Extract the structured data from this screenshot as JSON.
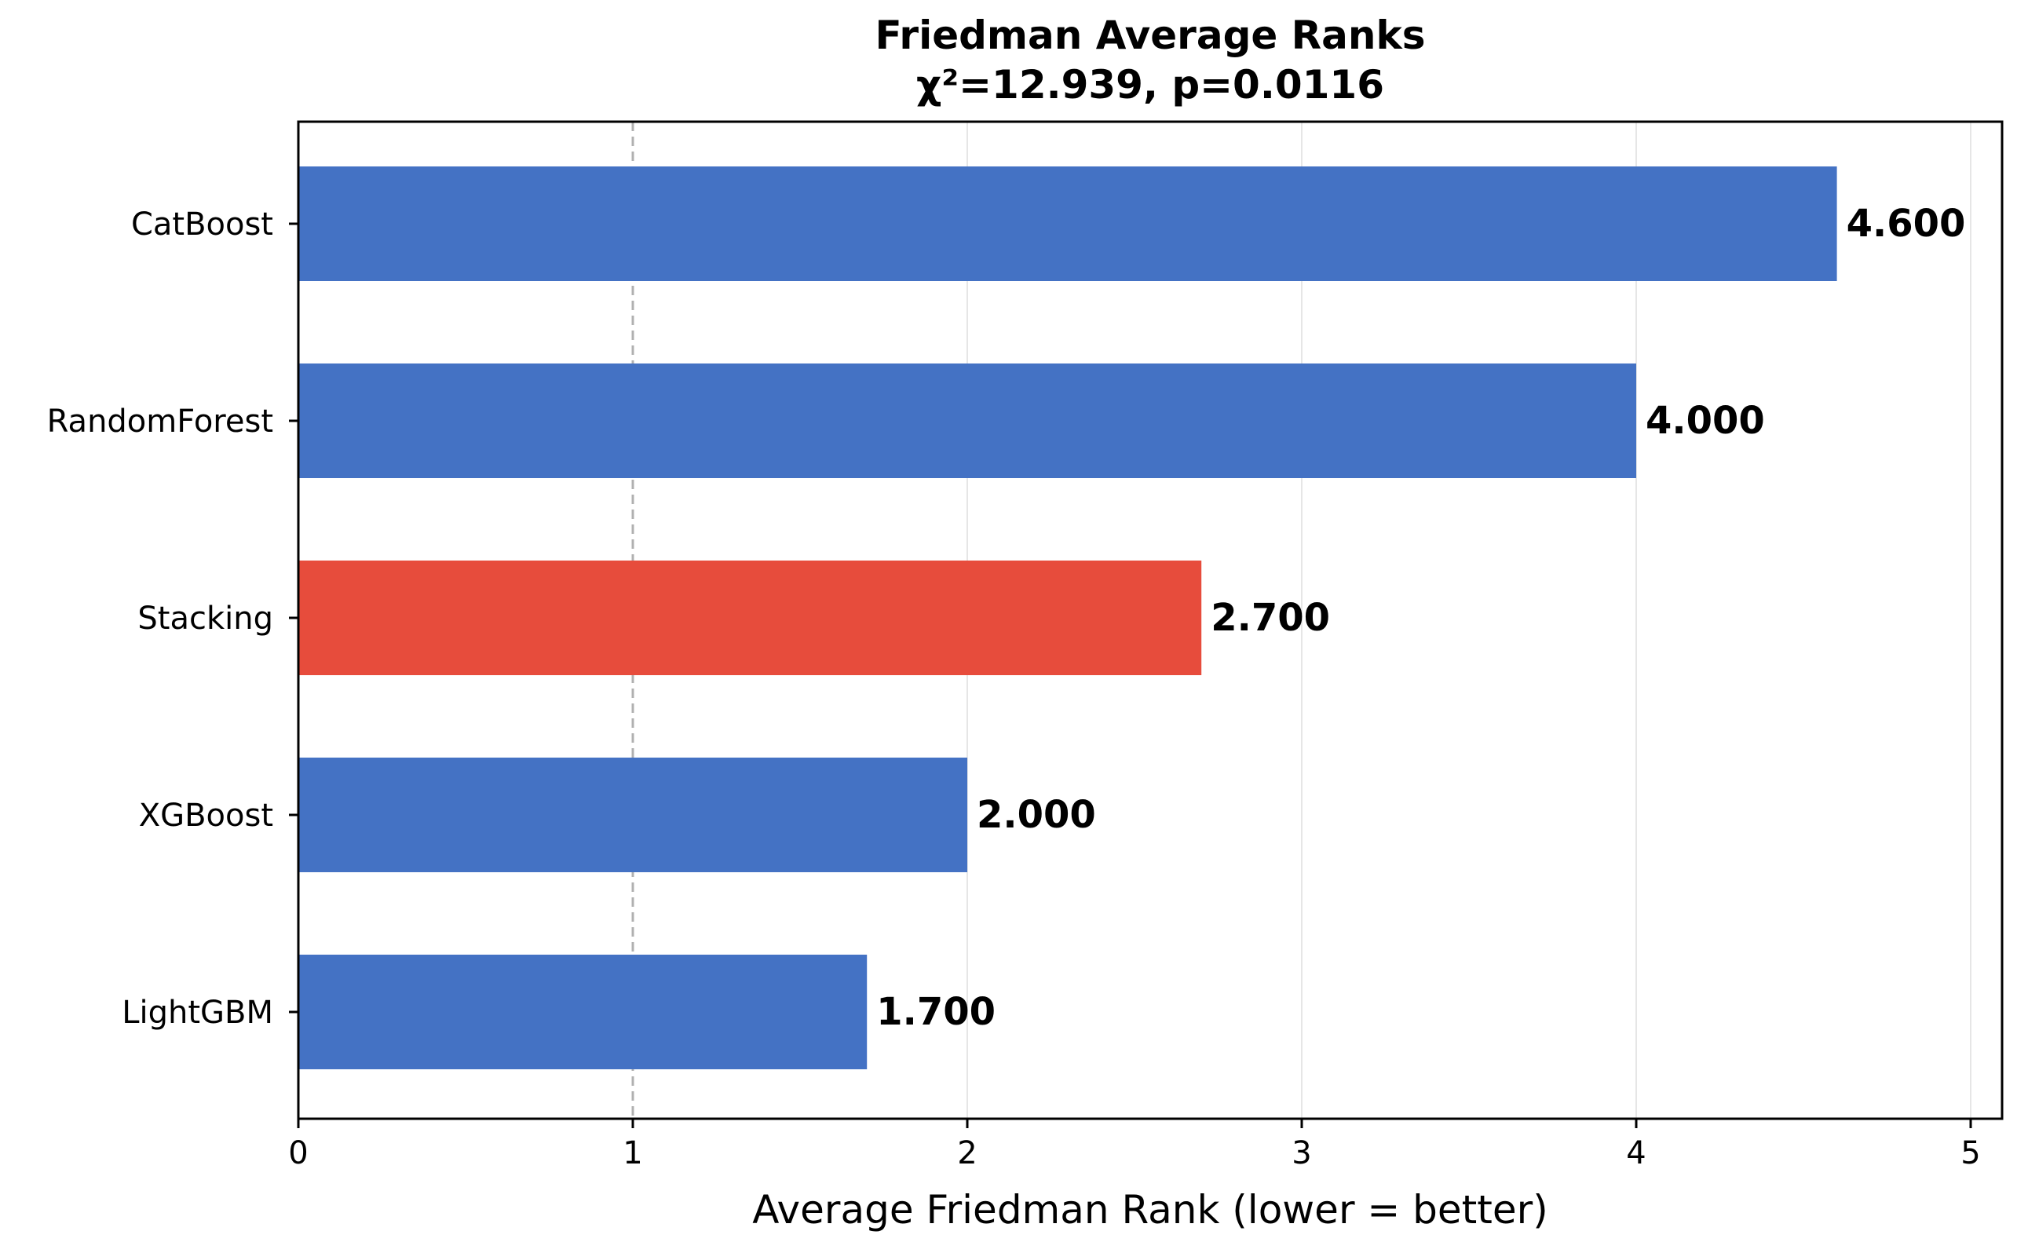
{
  "chart_data": {
    "type": "bar",
    "orientation": "horizontal",
    "title": "Friedman Average Ranks",
    "subtitle": "χ²=12.939, p=0.0116",
    "xlabel": "Average Friedman Rank (lower = better)",
    "ylabel": "",
    "xlim": [
      0,
      5
    ],
    "xticks": [
      "0",
      "1",
      "2",
      "3",
      "4",
      "5"
    ],
    "grid": "vertical",
    "reference_line": {
      "x": 1,
      "style": "dashed"
    },
    "categories": [
      "CatBoost",
      "RandomForest",
      "Stacking",
      "XGBoost",
      "LightGBM"
    ],
    "values": [
      4.6,
      4.0,
      2.7,
      2.0,
      1.7
    ],
    "value_labels": [
      "4.600",
      "4.000",
      "2.700",
      "2.000",
      "1.700"
    ],
    "highlight_category": "Stacking",
    "colors": {
      "bar": "#4472C4",
      "highlight": "#E74C3C",
      "grid": "#e6e6e6",
      "reference": "#b0b0b0"
    }
  }
}
